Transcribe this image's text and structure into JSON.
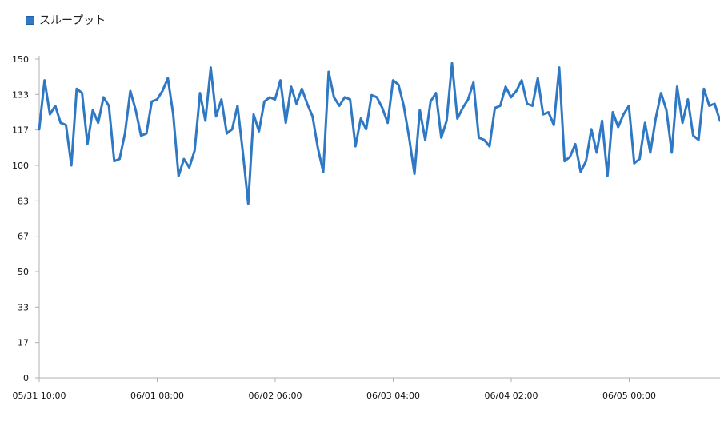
{
  "colors": {
    "series": "#2f78c4",
    "axis": "#b0b0b0",
    "text": "#111111"
  },
  "chart_data": {
    "type": "line",
    "title": "",
    "xlabel": "",
    "ylabel": "",
    "legend_position": "top-left",
    "grid": false,
    "y_ticks": [
      "0",
      "17",
      "33",
      "50",
      "67",
      "83",
      "100",
      "117",
      "133",
      "150"
    ],
    "ylim": [
      0,
      150
    ],
    "x_ticks": [
      "05/31 10:00",
      "06/01 08:00",
      "06/02 06:00",
      "06/03 04:00",
      "06/04 02:00",
      "06/05 00:00"
    ],
    "series": [
      {
        "name": "スループット",
        "values": [
          117,
          140,
          124,
          128,
          120,
          119,
          100,
          136,
          134,
          110,
          126,
          120,
          132,
          128,
          102,
          103,
          115,
          135,
          126,
          114,
          115,
          130,
          131,
          135,
          141,
          124,
          95,
          103,
          99,
          107,
          134,
          121,
          146,
          123,
          131,
          115,
          117,
          128,
          106,
          82,
          124,
          116,
          130,
          132,
          131,
          140,
          120,
          137,
          129,
          136,
          129,
          123,
          108,
          97,
          144,
          132,
          128,
          132,
          131,
          109,
          122,
          117,
          133,
          132,
          127,
          120,
          140,
          138,
          128,
          113,
          96,
          126,
          112,
          130,
          134,
          113,
          121,
          148,
          122,
          127,
          131,
          139,
          113,
          112,
          109,
          127,
          128,
          137,
          132,
          135,
          140,
          129,
          128,
          141,
          124,
          125,
          119,
          146,
          102,
          104,
          110,
          97,
          102,
          117,
          106,
          121,
          95,
          125,
          118,
          124,
          128,
          101,
          103,
          120,
          106,
          122,
          134,
          126,
          106,
          137,
          120,
          131,
          114,
          112,
          136,
          128,
          129,
          121
        ]
      }
    ]
  }
}
